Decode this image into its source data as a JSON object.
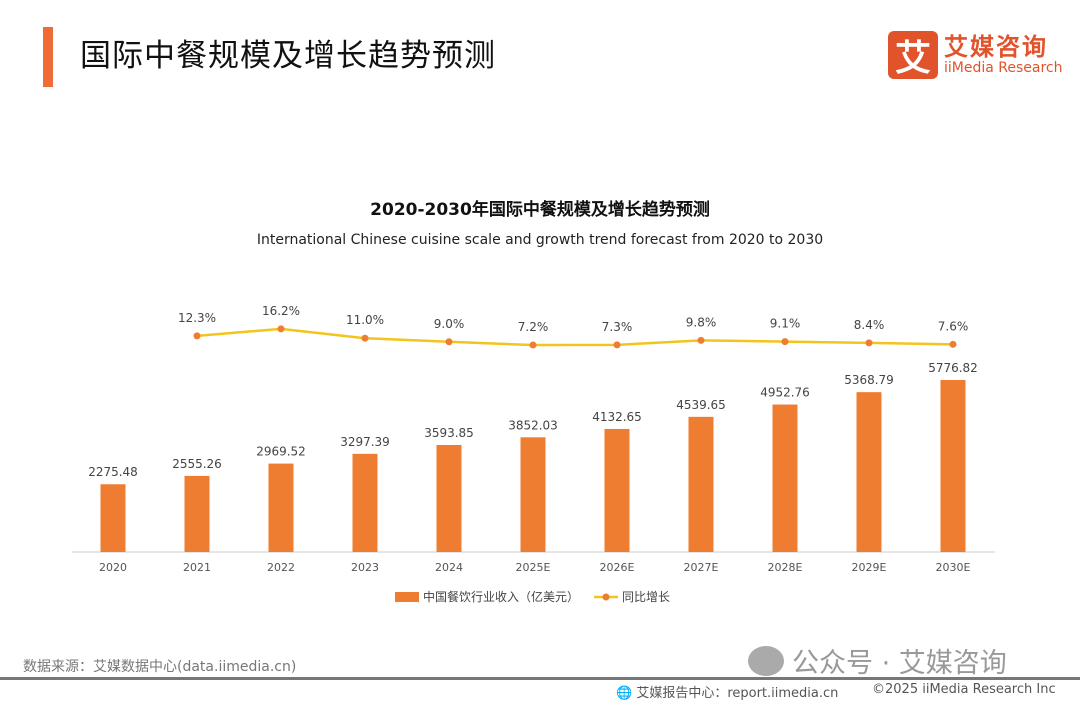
{
  "header": {
    "title": "国际中餐规模及增长趋势预测",
    "accent_color": "#ef6c36"
  },
  "logo": {
    "mark": "艾",
    "cn": "艾媒咨询",
    "en": "iiMedia Research",
    "color": "#e1532b"
  },
  "chart_data": {
    "type": "bar+line",
    "title": "2020-2030年国际中餐规模及增长趋势预测",
    "subtitle": "International Chinese cuisine scale and growth trend forecast from 2020 to 2030",
    "categories": [
      "2020",
      "2021",
      "2022",
      "2023",
      "2024",
      "2025E",
      "2026E",
      "2027E",
      "2028E",
      "2029E",
      "2030E"
    ],
    "series": [
      {
        "name": "中国餐饮行业收入（亿美元）",
        "type": "bar",
        "color": "#ef7d31",
        "values": [
          2275.48,
          2555.26,
          2969.52,
          3297.39,
          3593.85,
          3852.03,
          4132.65,
          4539.65,
          4952.76,
          5368.79,
          5776.82
        ],
        "labels": [
          "2275.48",
          "2555.26",
          "2969.52",
          "3297.39",
          "3593.85",
          "3852.03",
          "4132.65",
          "4539.65",
          "4952.76",
          "5368.79",
          "5776.82"
        ]
      },
      {
        "name": "同比增长",
        "type": "line",
        "color": "#f2c51d",
        "marker_color": "#ef7d31",
        "values": [
          null,
          12.3,
          16.2,
          11.0,
          9.0,
          7.2,
          7.3,
          9.8,
          9.1,
          8.4,
          7.6
        ],
        "labels": [
          "",
          "12.3%",
          "16.2%",
          "11.0%",
          "9.0%",
          "7.2%",
          "7.3%",
          "9.8%",
          "9.1%",
          "8.4%",
          "7.6%"
        ]
      }
    ],
    "legend": "bottom",
    "grid": false
  },
  "footer": {
    "source": "数据来源：艾媒数据中心(data.iimedia.cn)",
    "wechat": "公众号 · 艾媒咨询",
    "report": "艾媒报告中心：report.iimedia.cn",
    "copyright": "©2025  iiMedia Research  Inc"
  }
}
